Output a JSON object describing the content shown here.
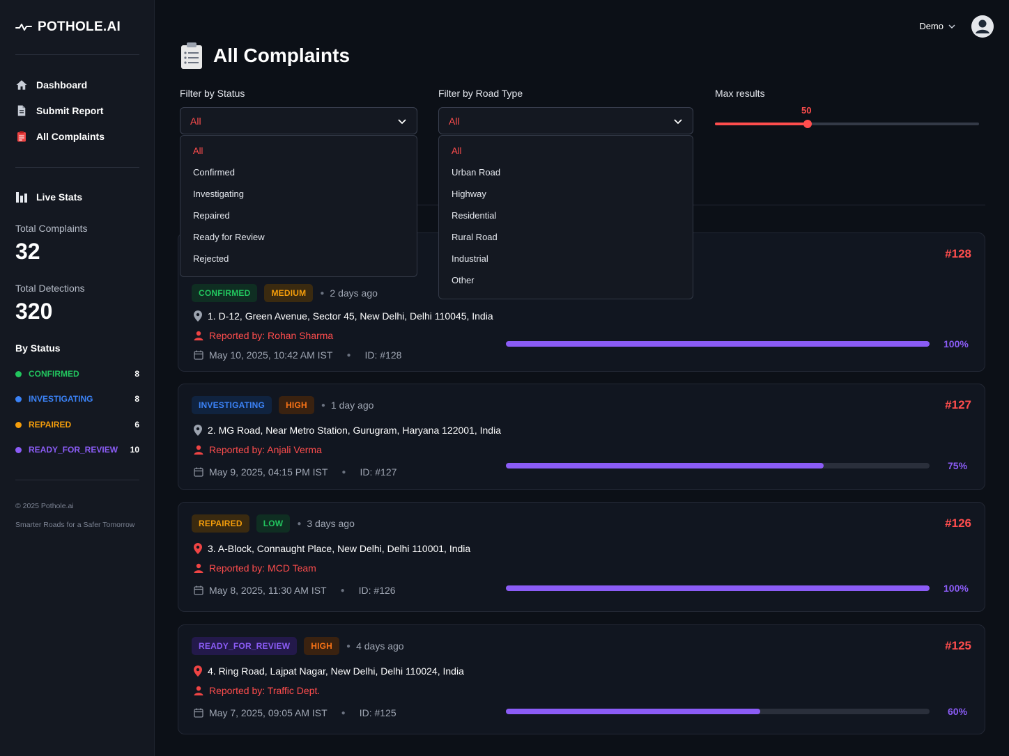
{
  "app": {
    "brand": "POTHOLE.AI"
  },
  "nav": [
    {
      "label": "Dashboard",
      "icon": "home-icon"
    },
    {
      "label": "Submit Report",
      "icon": "document-icon"
    },
    {
      "label": "All Complaints",
      "icon": "clipboard-icon"
    }
  ],
  "stats": {
    "title": "Live Stats",
    "total_complaints_label": "Total Complaints",
    "total_complaints": "32",
    "total_detections_label": "Total Detections",
    "total_detections": "320",
    "by_status_title": "By Status",
    "by_status": [
      {
        "label": "CONFIRMED",
        "count": "8",
        "color": "#22c55e"
      },
      {
        "label": "INVESTIGATING",
        "count": "8",
        "color": "#3b82f6"
      },
      {
        "label": "REPAIRED",
        "count": "6",
        "color": "#f59e0b"
      },
      {
        "label": "READY_FOR_REVIEW",
        "count": "10",
        "color": "#8b5cf6"
      }
    ]
  },
  "footer": {
    "copyright": "© 2025 Pothole.ai",
    "tagline": "Smarter Roads for a Safer Tomorrow"
  },
  "header": {
    "user": "Demo"
  },
  "page": {
    "title": "All Complaints"
  },
  "filters": {
    "status_label": "Filter by Status",
    "status_selected": "All",
    "status_options": [
      "All",
      "Confirmed",
      "Investigating",
      "Repaired",
      "Ready for Review",
      "Rejected"
    ],
    "road_label": "Filter by Road Type",
    "road_selected": "All",
    "road_options": [
      "All",
      "Urban Road",
      "Highway",
      "Residential",
      "Rural Road",
      "Industrial",
      "Other"
    ],
    "max_label": "Max results",
    "max_value": "50",
    "max_fraction": 0.35
  },
  "complaints": [
    {
      "status": "CONFIRMED",
      "status_color": "#22c55e",
      "status_bg": "#0f2e22",
      "severity": "MEDIUM",
      "severity_color": "#f59e0b",
      "severity_bg": "#3a2a10",
      "ago": "2 days ago",
      "id_top": "#128",
      "address": "1. D-12, Green Avenue, Sector 45, New Delhi, Delhi 110045, India",
      "reporter": "Reported by: Rohan Sharma",
      "date": "May 10, 2025, 10:42 AM IST",
      "id": "ID: #128",
      "progress": 100,
      "progress_label": "100%"
    },
    {
      "status": "INVESTIGATING",
      "status_color": "#3b82f6",
      "status_bg": "#10233f",
      "severity": "HIGH",
      "severity_color": "#f97316",
      "severity_bg": "#3a2210",
      "ago": "1 day ago",
      "id_top": "#127",
      "address": "2. MG Road, Near Metro Station, Gurugram, Haryana 122001, India",
      "reporter": "Reported by: Anjali Verma",
      "date": "May 9, 2025, 04:15 PM IST",
      "id": "ID: #127",
      "progress": 75,
      "progress_label": "75%"
    },
    {
      "status": "REPAIRED",
      "status_color": "#f59e0b",
      "status_bg": "#3a2a10",
      "severity": "LOW",
      "severity_color": "#22c55e",
      "severity_bg": "#0f2e22",
      "ago": "3 days ago",
      "id_top": "#126",
      "address": "3. A-Block, Connaught Place, New Delhi, Delhi 110001, India",
      "reporter": "Reported by: MCD Team",
      "date": "May 8, 2025, 11:30 AM IST",
      "id": "ID: #126",
      "progress": 100,
      "progress_label": "100%"
    },
    {
      "status": "READY_FOR_REVIEW",
      "status_color": "#8b5cf6",
      "status_bg": "#23194a",
      "severity": "HIGH",
      "severity_color": "#f97316",
      "severity_bg": "#3a2210",
      "ago": "4 days ago",
      "id_top": "#125",
      "address": "4. Ring Road, Lajpat Nagar, New Delhi, Delhi 110024, India",
      "reporter": "Reported by: Traffic Dept.",
      "date": "May 7, 2025, 09:05 AM IST",
      "id": "ID: #125",
      "progress": 60,
      "progress_label": "60%"
    }
  ]
}
